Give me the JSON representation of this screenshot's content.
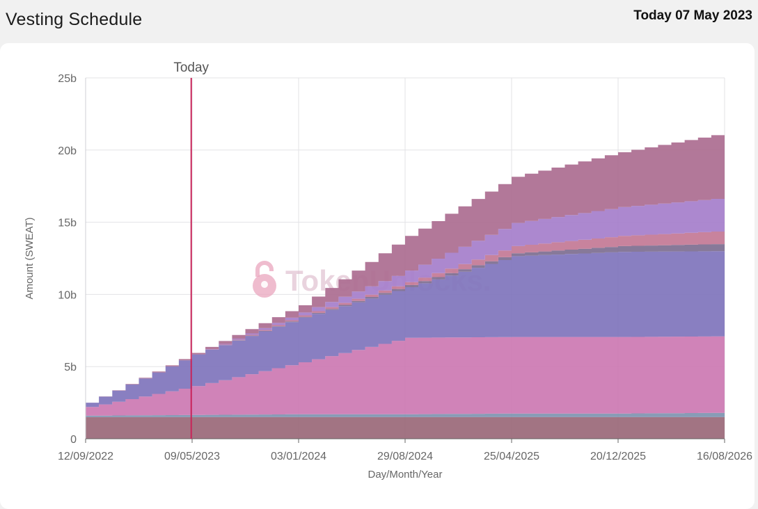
{
  "header": {
    "title": "Vesting Schedule",
    "today_text": "Today 07 May 2023"
  },
  "watermark": {
    "text": "TokenUnlocks."
  },
  "colors": {
    "background": "#f1f1f1",
    "card": "#ffffff",
    "grid": "#e3e3e6",
    "axis_text": "#666666",
    "today_line": "#c9245a"
  },
  "chart_data": {
    "type": "area",
    "stacked": true,
    "step": true,
    "xlabel": "Day/Month/Year",
    "ylabel": "Amount (SWEAT)",
    "ylim": [
      0,
      25
    ],
    "y_unit": "b",
    "y_ticks": [
      0,
      5,
      10,
      15,
      20,
      25
    ],
    "y_tick_labels": [
      "0",
      "5b",
      "10b",
      "15b",
      "20b",
      "25b"
    ],
    "x_tick_labels": [
      "12/09/2022",
      "09/05/2023",
      "03/01/2024",
      "29/08/2024",
      "25/04/2025",
      "20/12/2025",
      "16/08/2026"
    ],
    "xlim": [
      "12/09/2022",
      "16/08/2026"
    ],
    "grid": true,
    "legend": "none",
    "annotation": {
      "label": "Today",
      "x": "07/05/2023"
    },
    "x": [
      "12/09/2022",
      "09/05/2023",
      "03/01/2024",
      "29/08/2024",
      "25/04/2025",
      "20/12/2025",
      "16/08/2026"
    ],
    "series": [
      {
        "color": "#9a6878",
        "values": [
          1.5,
          1.5,
          1.5,
          1.5,
          1.5,
          1.5,
          1.5
        ]
      },
      {
        "color": "#7e94b0",
        "values": [
          0.1,
          0.15,
          0.2,
          0.2,
          0.25,
          0.25,
          0.3
        ]
      },
      {
        "color": "#cc78b2",
        "values": [
          0.6,
          2.0,
          3.6,
          5.3,
          5.3,
          5.3,
          5.3
        ]
      },
      {
        "color": "#7f74bc",
        "values": [
          0.3,
          2.2,
          3.1,
          3.5,
          5.6,
          5.9,
          5.9
        ]
      },
      {
        "color": "#7d6e90",
        "values": [
          0.0,
          0.0,
          0.05,
          0.15,
          0.2,
          0.4,
          0.5
        ]
      },
      {
        "color": "#c37895",
        "values": [
          0.0,
          0.0,
          0.1,
          0.2,
          0.5,
          0.7,
          0.9
        ]
      },
      {
        "color": "#a57ecb",
        "values": [
          0.0,
          0.0,
          0.2,
          0.8,
          1.6,
          2.0,
          2.3
        ]
      },
      {
        "color": "#ab6c90",
        "values": [
          0.0,
          0.1,
          0.5,
          2.4,
          3.2,
          3.8,
          4.5
        ]
      }
    ]
  }
}
